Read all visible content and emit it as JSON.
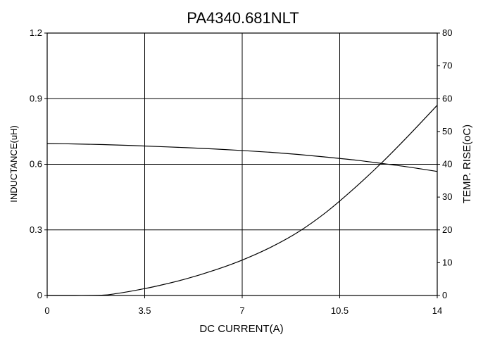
{
  "chart_data": {
    "type": "line",
    "title": "PA4340.681NLT",
    "xlabel": "DC CURRENT(A)",
    "ylabel_left": "INDUCTANCE(uH)",
    "ylabel_right": "TEMP. RISE(oC)",
    "xlim": [
      0,
      14
    ],
    "ylim_left": [
      0,
      1.2
    ],
    "ylim_right": [
      0,
      80
    ],
    "x_ticks": [
      "0",
      "3.5",
      "7",
      "10.5",
      "14"
    ],
    "y_left_ticks": [
      "0",
      "0.3",
      "0.6",
      "0.9",
      "1.2"
    ],
    "y_right_ticks": [
      "0",
      "10",
      "20",
      "30",
      "40",
      "50",
      "60",
      "70",
      "80"
    ],
    "grid": true,
    "series": [
      {
        "axis": "left",
        "x": [
          0,
          1,
          2,
          3,
          4,
          5,
          6,
          7,
          8,
          9,
          10,
          11,
          12,
          13,
          14
        ],
        "y": [
          0.695,
          0.693,
          0.69,
          0.686,
          0.681,
          0.676,
          0.67,
          0.663,
          0.655,
          0.645,
          0.633,
          0.62,
          0.604,
          0.587,
          0.567
        ]
      },
      {
        "axis": "right",
        "x": [
          0,
          1,
          2,
          2.5,
          3,
          3.5,
          4,
          5,
          6,
          7,
          8,
          9,
          10,
          11,
          12,
          13,
          14
        ],
        "y": [
          0,
          0,
          0.1,
          0.6,
          1.3,
          2.1,
          3,
          5.1,
          7.7,
          10.8,
          14.6,
          19.3,
          25.3,
          32.5,
          40.4,
          49,
          58
        ]
      }
    ]
  }
}
